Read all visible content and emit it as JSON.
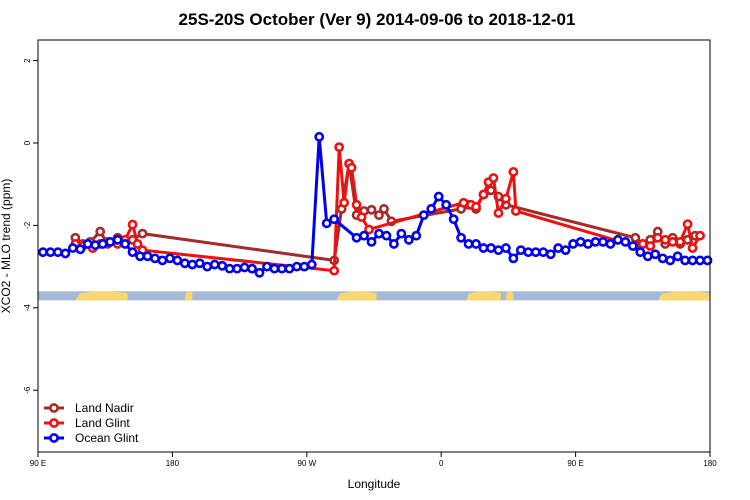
{
  "chart_data": {
    "type": "line",
    "title": "25S-20S October (Ver 9)   2014-09-06 to 2018-12-01",
    "xlabel": "Longitude",
    "ylabel": "XCO2 - MLO trend (ppm)",
    "xlim": [
      -90,
      180
    ],
    "ylim": [
      -7.5,
      2.5
    ],
    "xticks": [
      {
        "value": -90,
        "label": "90 E"
      },
      {
        "value": -36,
        "label": "180"
      },
      {
        "value": 18,
        "label": "90 W"
      },
      {
        "value": 72,
        "label": "0"
      },
      {
        "value": 126,
        "label": "90 E"
      },
      {
        "value": 180,
        "label": "180"
      }
    ],
    "yticks": [
      {
        "value": 2,
        "label": "2"
      },
      {
        "value": 0,
        "label": "0"
      },
      {
        "value": -2,
        "label": "-2"
      },
      {
        "value": -4,
        "label": "-4"
      },
      {
        "value": -6,
        "label": "-6"
      }
    ],
    "surface_band": {
      "y_range": [
        -3.82,
        -3.6
      ],
      "ocean_color": "#a4bad8",
      "land_color": "#fbd771",
      "land_segments": [
        [
          -75,
          -54
        ],
        [
          -31,
          -28
        ],
        [
          30,
          46
        ],
        [
          82,
          96
        ],
        [
          98,
          101
        ],
        [
          159,
          193
        ],
        [
          208,
          210
        ]
      ]
    },
    "series": [
      {
        "name": "Land Nadir",
        "color": "#a52a2a",
        "x": [
          -75,
          -72,
          -69,
          -65,
          -62,
          -58,
          -55,
          -52,
          -48,
          29,
          32,
          35,
          38,
          41,
          44,
          47,
          49,
          52,
          80,
          83,
          86,
          89,
          92,
          95,
          98,
          150,
          153,
          156,
          159,
          162,
          165,
          168,
          171,
          174
        ],
        "y": [
          -2.3,
          -2.45,
          -2.4,
          -2.15,
          -2.45,
          -2.3,
          -2.4,
          -2.35,
          -2.2,
          -2.85,
          -1.6,
          -0.5,
          -1.75,
          -1.65,
          -1.62,
          -1.75,
          -1.6,
          -1.9,
          -1.6,
          -1.5,
          -1.6,
          -1.25,
          -1.15,
          -1.3,
          -1.5,
          -2.3,
          -2.45,
          -2.35,
          -2.15,
          -2.45,
          -2.3,
          -2.45,
          -2.35,
          -2.25
        ]
      },
      {
        "name": "Land Glint",
        "color": "#ee1111",
        "x": [
          -75,
          -72,
          -68,
          -65,
          -62,
          -58,
          -55,
          -52,
          -50,
          -48,
          29,
          31,
          33,
          35,
          36,
          38,
          40,
          43,
          81,
          84,
          86,
          89,
          91,
          93,
          95,
          98,
          101,
          102,
          150,
          153,
          156,
          159,
          162,
          165,
          168,
          171,
          173,
          176
        ],
        "y": [
          -2.45,
          -2.5,
          -2.55,
          -2.45,
          -2.4,
          -2.45,
          -2.35,
          -1.98,
          -2.45,
          -2.6,
          -3.1,
          -0.1,
          -1.45,
          -0.5,
          -0.6,
          -1.5,
          -1.8,
          -2.1,
          -1.45,
          -1.5,
          -1.55,
          -1.25,
          -0.95,
          -0.85,
          -1.7,
          -1.35,
          -0.7,
          -1.65,
          -2.5,
          -2.45,
          -2.5,
          -2.3,
          -2.35,
          -2.4,
          -2.4,
          -1.97,
          -2.55,
          -2.25
        ]
      },
      {
        "name": "Ocean Glint",
        "color": "#0000ee",
        "x": [
          -88,
          -85,
          -82,
          -79,
          -76,
          -73,
          -70,
          -67,
          -64,
          -61,
          -58,
          -55,
          -52,
          -49,
          -46,
          -43,
          -40,
          -37,
          -34,
          -31,
          -28,
          -25,
          -22,
          -19,
          -16,
          -13,
          -10,
          -7,
          -4,
          -1,
          2,
          5,
          8,
          11,
          14,
          17,
          20,
          23,
          26,
          29,
          38,
          41,
          44,
          47,
          50,
          53,
          56,
          59,
          62,
          65,
          68,
          71,
          74,
          77,
          80,
          83,
          86,
          89,
          92,
          95,
          98,
          101,
          104,
          107,
          110,
          113,
          116,
          119,
          122,
          125,
          128,
          131,
          134,
          137,
          140,
          143,
          146,
          149,
          152,
          155,
          158,
          161,
          164,
          167,
          170,
          173,
          176,
          179
        ],
        "y": [
          -2.65,
          -2.65,
          -2.65,
          -2.68,
          -2.55,
          -2.58,
          -2.45,
          -2.48,
          -2.45,
          -2.4,
          -2.35,
          -2.45,
          -2.65,
          -2.75,
          -2.75,
          -2.8,
          -2.85,
          -2.8,
          -2.85,
          -2.92,
          -2.95,
          -2.92,
          -3.0,
          -2.95,
          -2.98,
          -3.05,
          -3.05,
          -3.02,
          -3.05,
          -3.15,
          -3.0,
          -3.05,
          -3.05,
          -3.05,
          -3.0,
          -3.0,
          -2.95,
          0.15,
          -1.95,
          -1.85,
          -2.3,
          -2.25,
          -2.4,
          -2.2,
          -2.25,
          -2.45,
          -2.2,
          -2.35,
          -2.25,
          -1.75,
          -1.6,
          -1.3,
          -1.5,
          -1.85,
          -2.3,
          -2.45,
          -2.45,
          -2.55,
          -2.55,
          -2.6,
          -2.55,
          -2.8,
          -2.6,
          -2.65,
          -2.65,
          -2.65,
          -2.7,
          -2.55,
          -2.6,
          -2.45,
          -2.4,
          -2.45,
          -2.4,
          -2.4,
          -2.45,
          -2.35,
          -2.4,
          -2.5,
          -2.65,
          -2.75,
          -2.7,
          -2.8,
          -2.85,
          -2.75,
          -2.85,
          -2.85,
          -2.85,
          -2.85
        ]
      }
    ],
    "legend": {
      "placement": "bottom-left",
      "entries": [
        "Land Nadir",
        "Land Glint",
        "Ocean Glint"
      ]
    },
    "grid": false
  }
}
